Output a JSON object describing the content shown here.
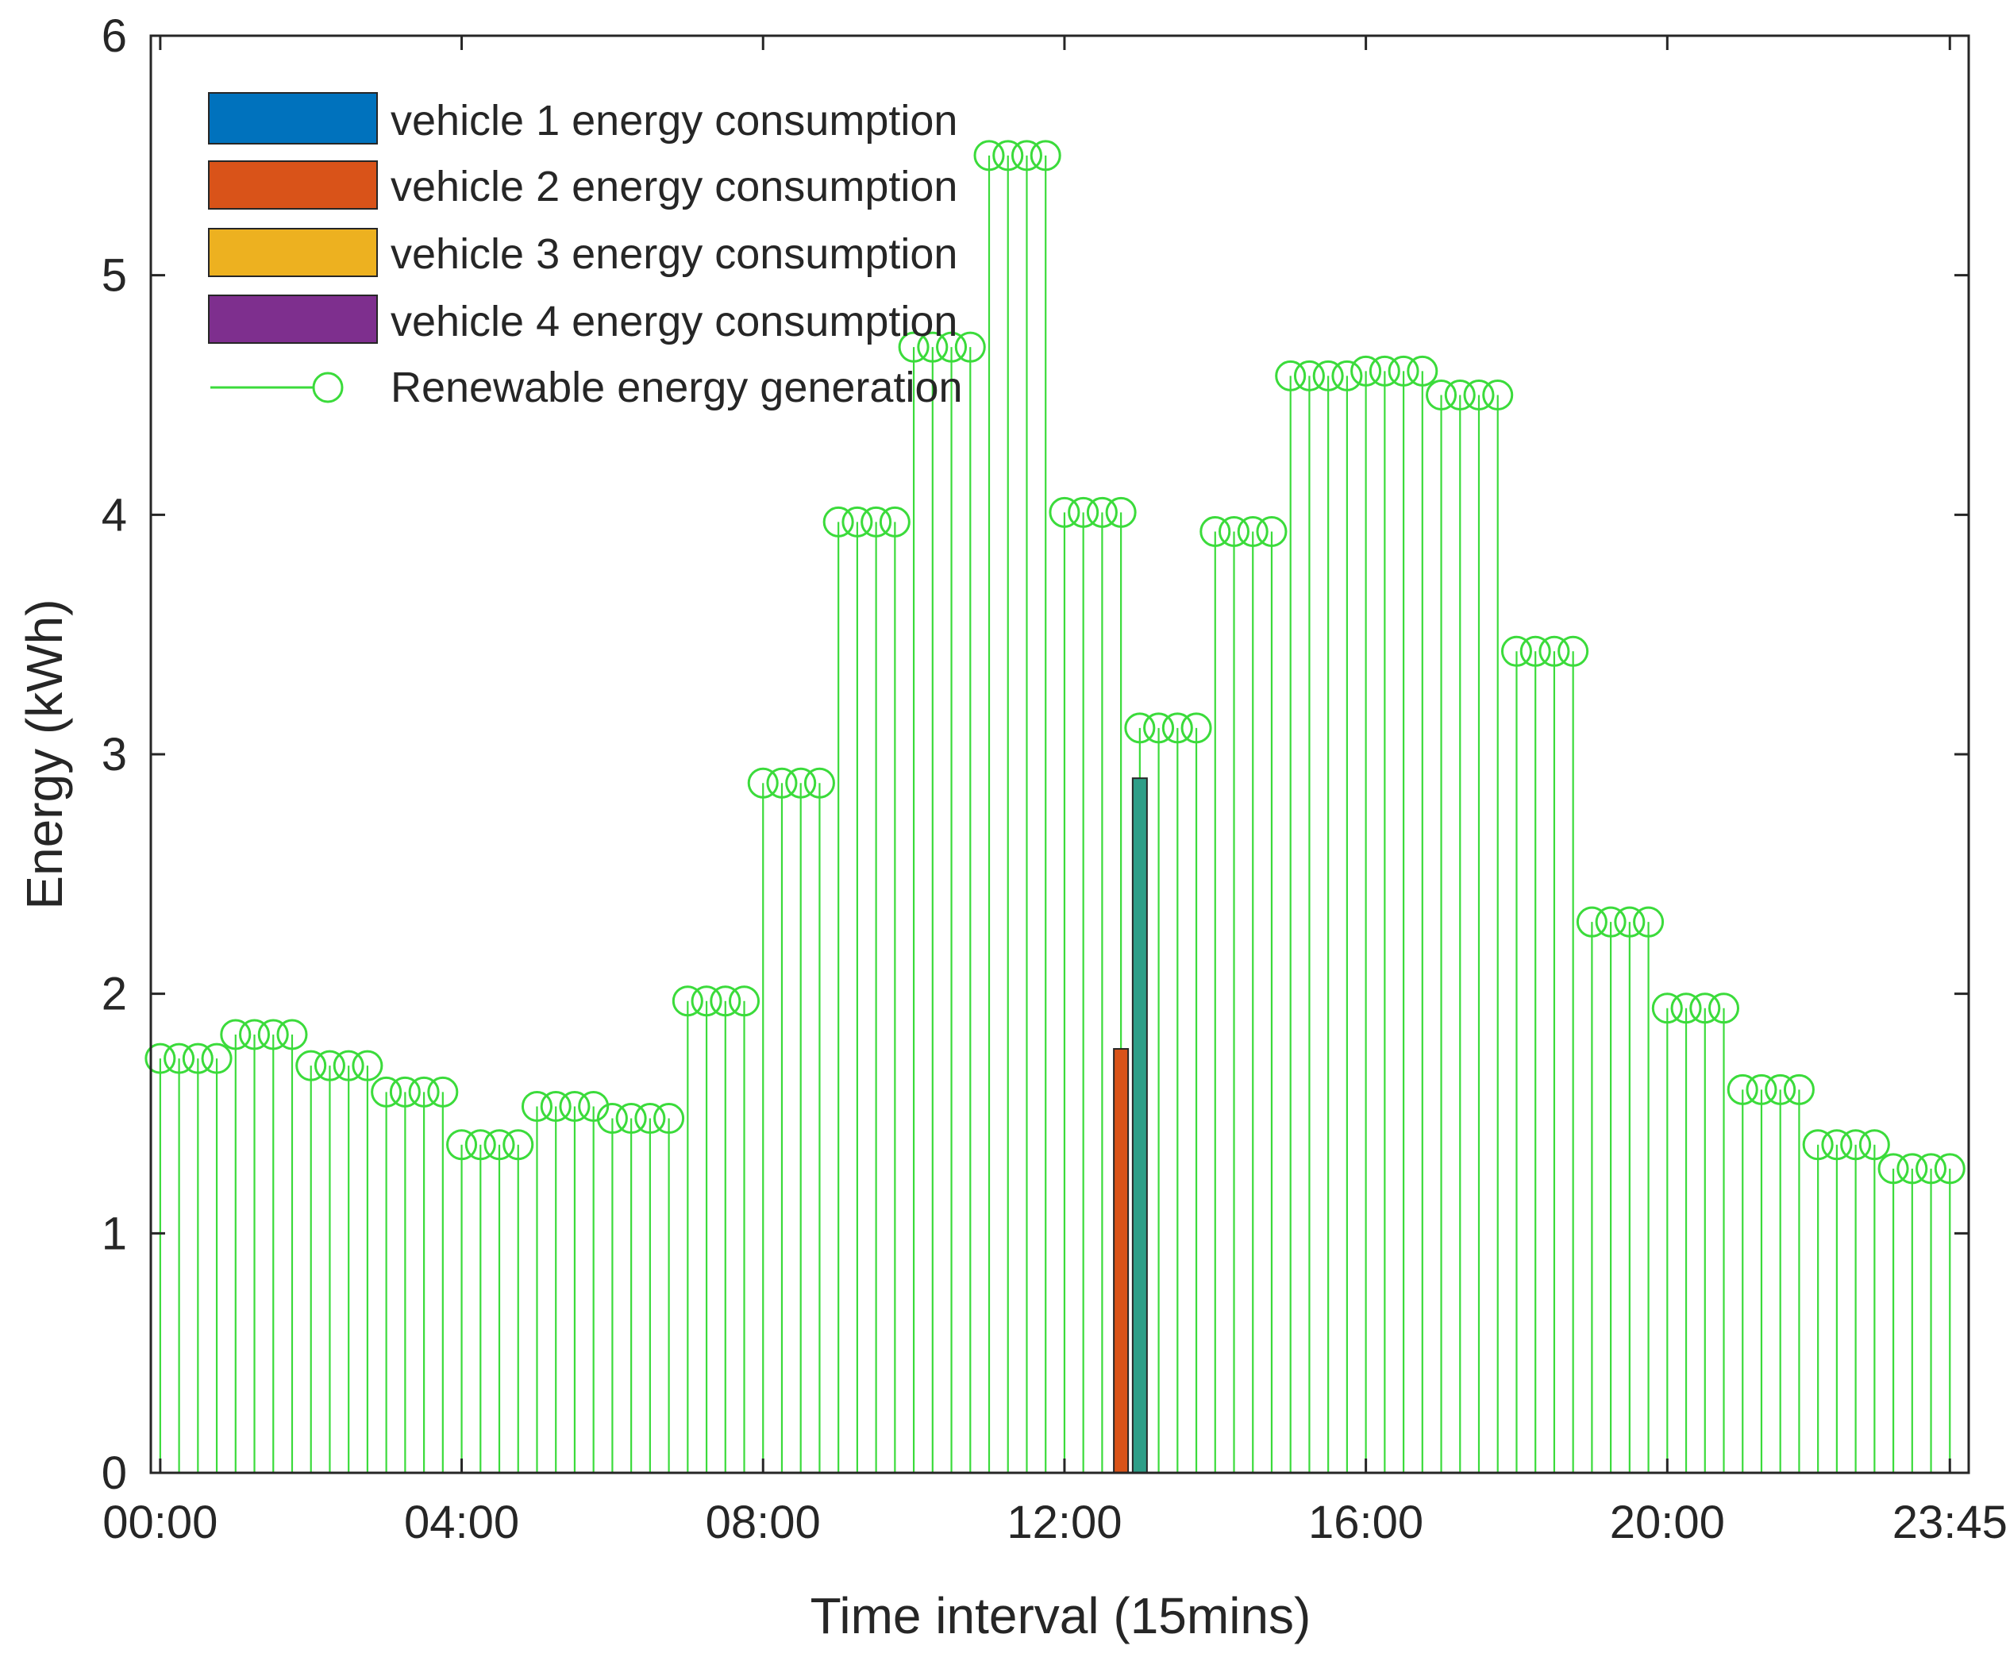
{
  "chart_data": {
    "type": "bar",
    "title": "",
    "xlabel": "Time interval (15mins)",
    "ylabel": "Energy (kWh)",
    "ylim": [
      0,
      6
    ],
    "xlim": [
      -0.5,
      96
    ],
    "yticks": [
      0,
      1,
      2,
      3,
      4,
      5,
      6
    ],
    "xticks": [
      {
        "index": 0,
        "label": "00:00"
      },
      {
        "index": 16,
        "label": "04:00"
      },
      {
        "index": 32,
        "label": "08:00"
      },
      {
        "index": 48,
        "label": "12:00"
      },
      {
        "index": 64,
        "label": "16:00"
      },
      {
        "index": 80,
        "label": "20:00"
      },
      {
        "index": 95,
        "label": "23:45"
      }
    ],
    "grid": false,
    "legend_position": "top-left",
    "legend": [
      {
        "label": "vehicle 1 energy consumption",
        "type": "bar",
        "color": "#0072BD"
      },
      {
        "label": "vehicle 2 energy consumption",
        "type": "bar",
        "color": "#D95319"
      },
      {
        "label": "vehicle 3 energy consumption",
        "type": "bar",
        "color": "#EDB120"
      },
      {
        "label": "vehicle 4 energy consumption",
        "type": "bar",
        "color": "#7E2F8E"
      },
      {
        "label": "Renewable energy generation",
        "type": "stem",
        "color": "#3BDB3B"
      }
    ],
    "series": [
      {
        "name": "Renewable energy generation",
        "type": "stem",
        "color": "#3BDB3B",
        "hourly_values": [
          1.73,
          1.83,
          1.7,
          1.59,
          1.37,
          1.53,
          1.48,
          1.97,
          2.88,
          3.97,
          4.7,
          5.5,
          4.01,
          3.11,
          3.93,
          4.58,
          4.6,
          4.5,
          3.43,
          2.3,
          1.94,
          1.6,
          1.37,
          1.27
        ],
        "points_per_hour": 4
      },
      {
        "name": "vehicle 1 energy consumption",
        "type": "bar",
        "color": "#0072BD",
        "bars": [
          {
            "index": 52,
            "value": 2.9
          }
        ]
      },
      {
        "name": "vehicle 2 energy consumption",
        "type": "bar",
        "color": "#D95319",
        "bars": [
          {
            "index": 51,
            "value": 1.77
          }
        ]
      },
      {
        "name": "vehicle 3 energy consumption",
        "type": "bar",
        "color": "#EDB120",
        "bars": []
      },
      {
        "name": "vehicle 4 energy consumption",
        "type": "bar",
        "color": "#7E2F8E",
        "bars": []
      }
    ],
    "overlap_bar": {
      "index": 52,
      "value": 2.9,
      "color": "#2E9E88"
    }
  }
}
